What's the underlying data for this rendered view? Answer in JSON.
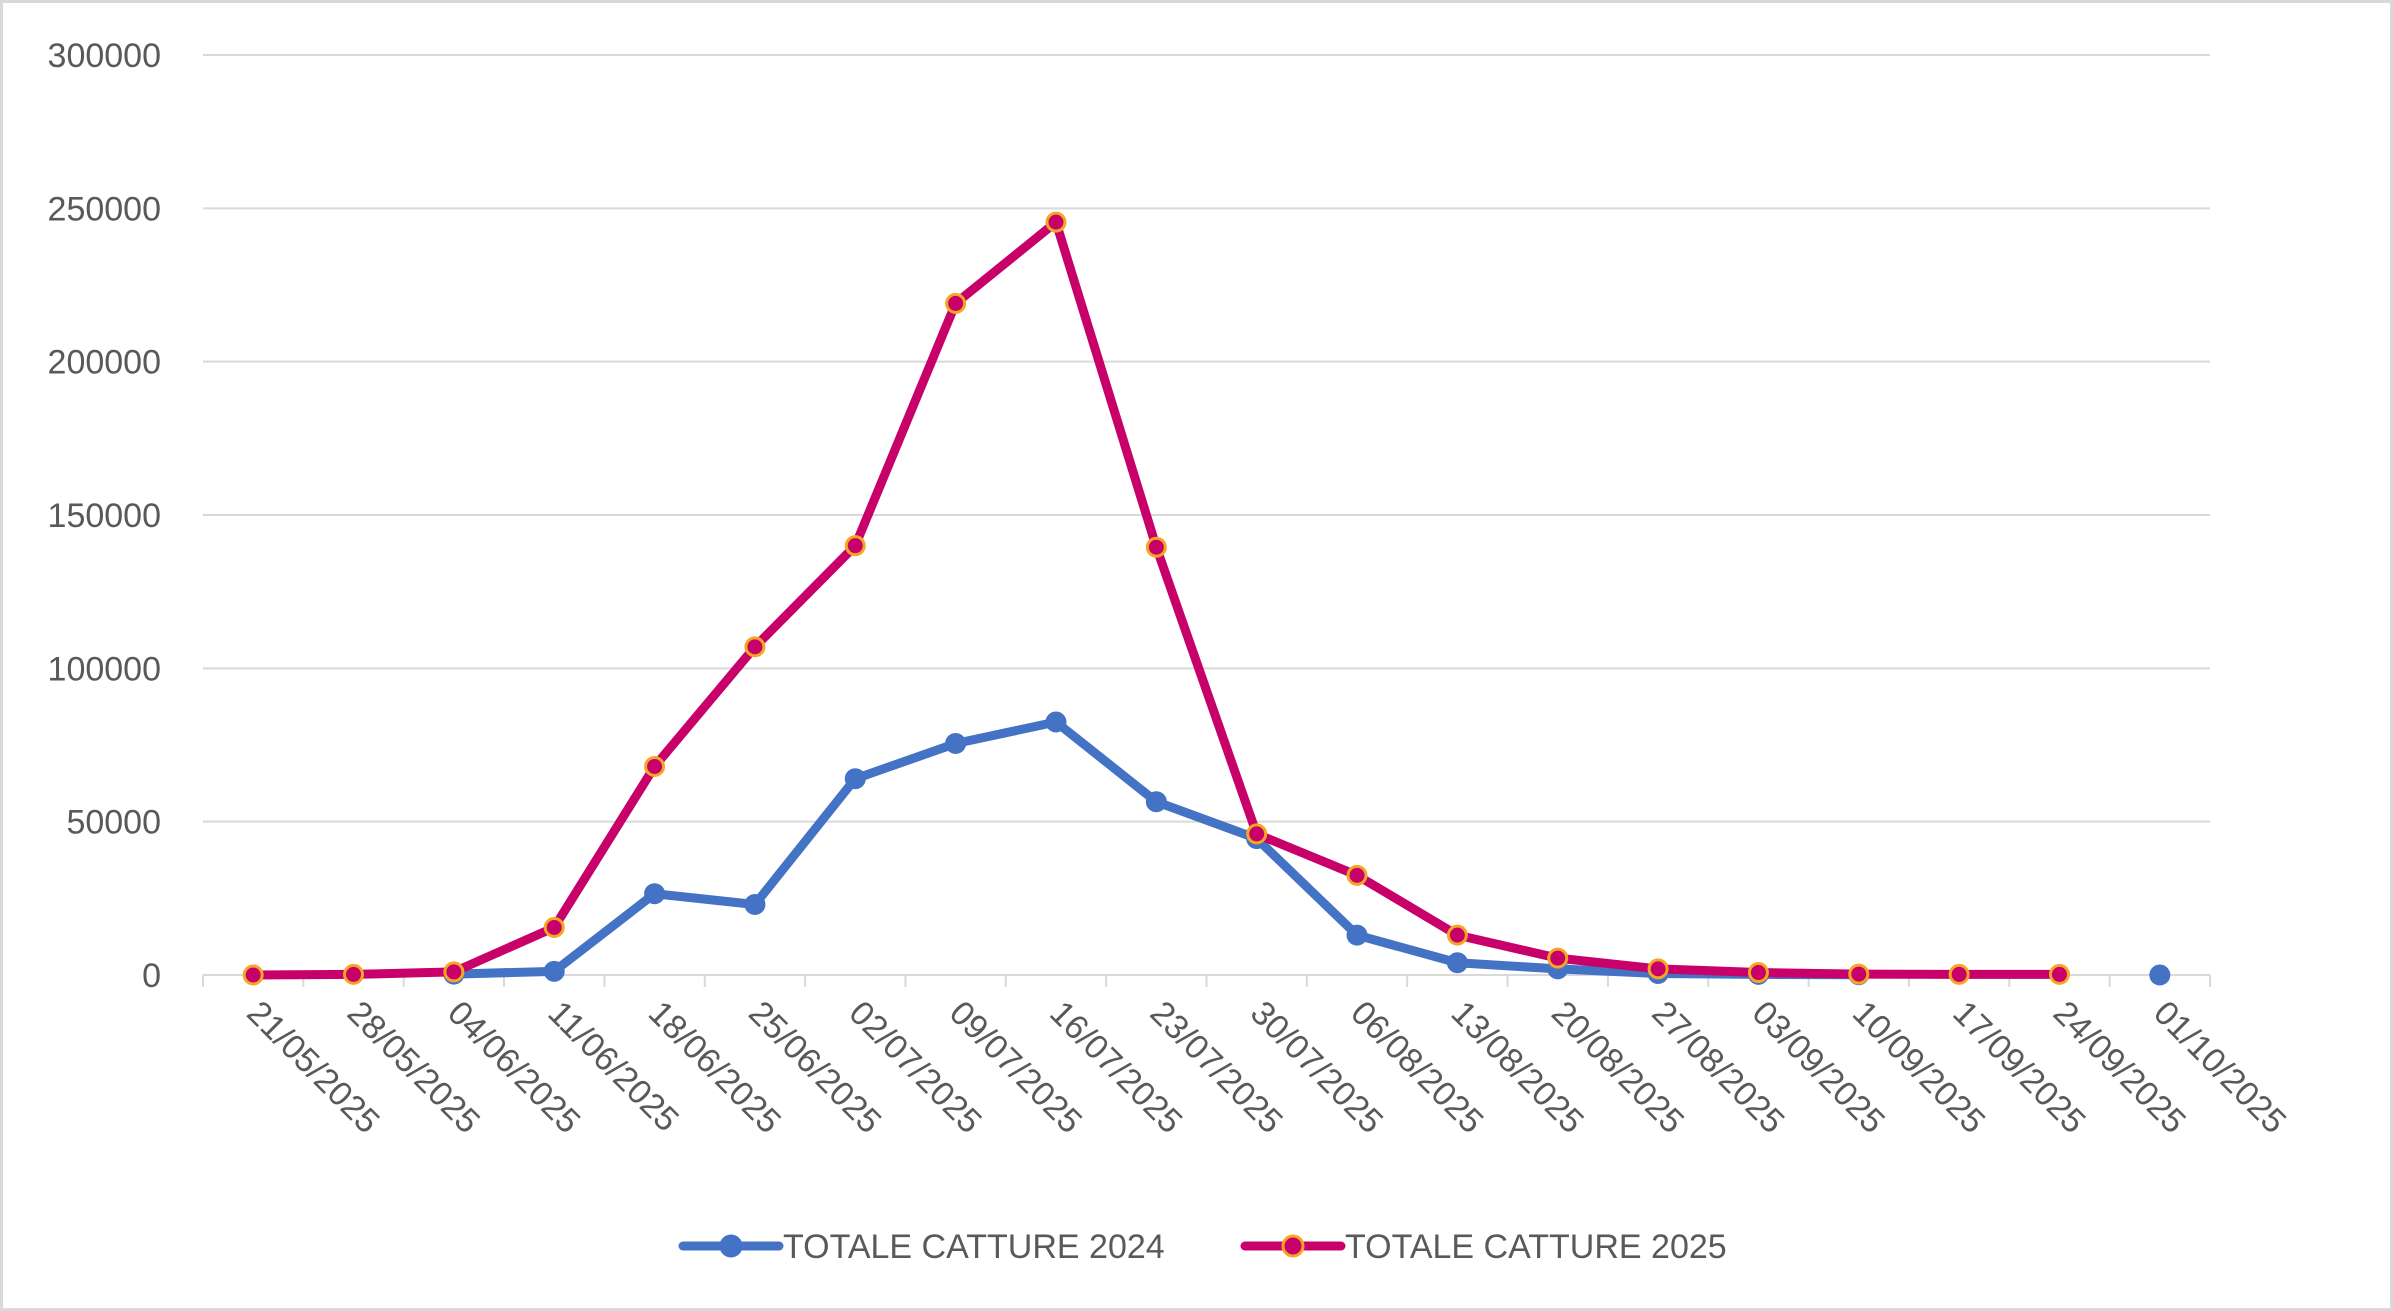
{
  "chart_data": {
    "type": "line",
    "title": "",
    "xlabel": "",
    "ylabel": "",
    "categories": [
      "21/05/2025",
      "28/05/2025",
      "04/06/2025",
      "11/06/2025",
      "18/06/2025",
      "25/06/2025",
      "02/07/2025",
      "09/07/2025",
      "16/07/2025",
      "23/07/2025",
      "30/07/2025",
      "06/08/2025",
      "13/08/2025",
      "20/08/2025",
      "27/08/2025",
      "03/09/2025",
      "10/09/2025",
      "17/09/2025",
      "24/09/2025",
      "01/10/2025"
    ],
    "ylim": [
      0,
      300000
    ],
    "yticks": [
      "0",
      "50000",
      "100000",
      "150000",
      "200000",
      "250000",
      "300000"
    ],
    "grid": true,
    "legend_position": "bottom",
    "series": [
      {
        "name": "TOTALE CATTURE 2024",
        "color": "#4472c4",
        "marker_fill": "#4472c4",
        "marker_stroke": "#4472c4",
        "values": [
          null,
          null,
          300,
          1200,
          26500,
          23000,
          64000,
          75500,
          82500,
          56500,
          44500,
          13000,
          4000,
          2000,
          500,
          200,
          100,
          null,
          null,
          0
        ]
      },
      {
        "name": "TOTALE CATTURE 2025",
        "color": "#c8006a",
        "marker_fill": "#c8006a",
        "marker_stroke": "#f5a623",
        "values": [
          0,
          200,
          1000,
          15500,
          68000,
          107000,
          140000,
          219000,
          245500,
          139500,
          46000,
          32500,
          13000,
          5500,
          2000,
          800,
          300,
          200,
          200,
          null
        ]
      }
    ]
  }
}
